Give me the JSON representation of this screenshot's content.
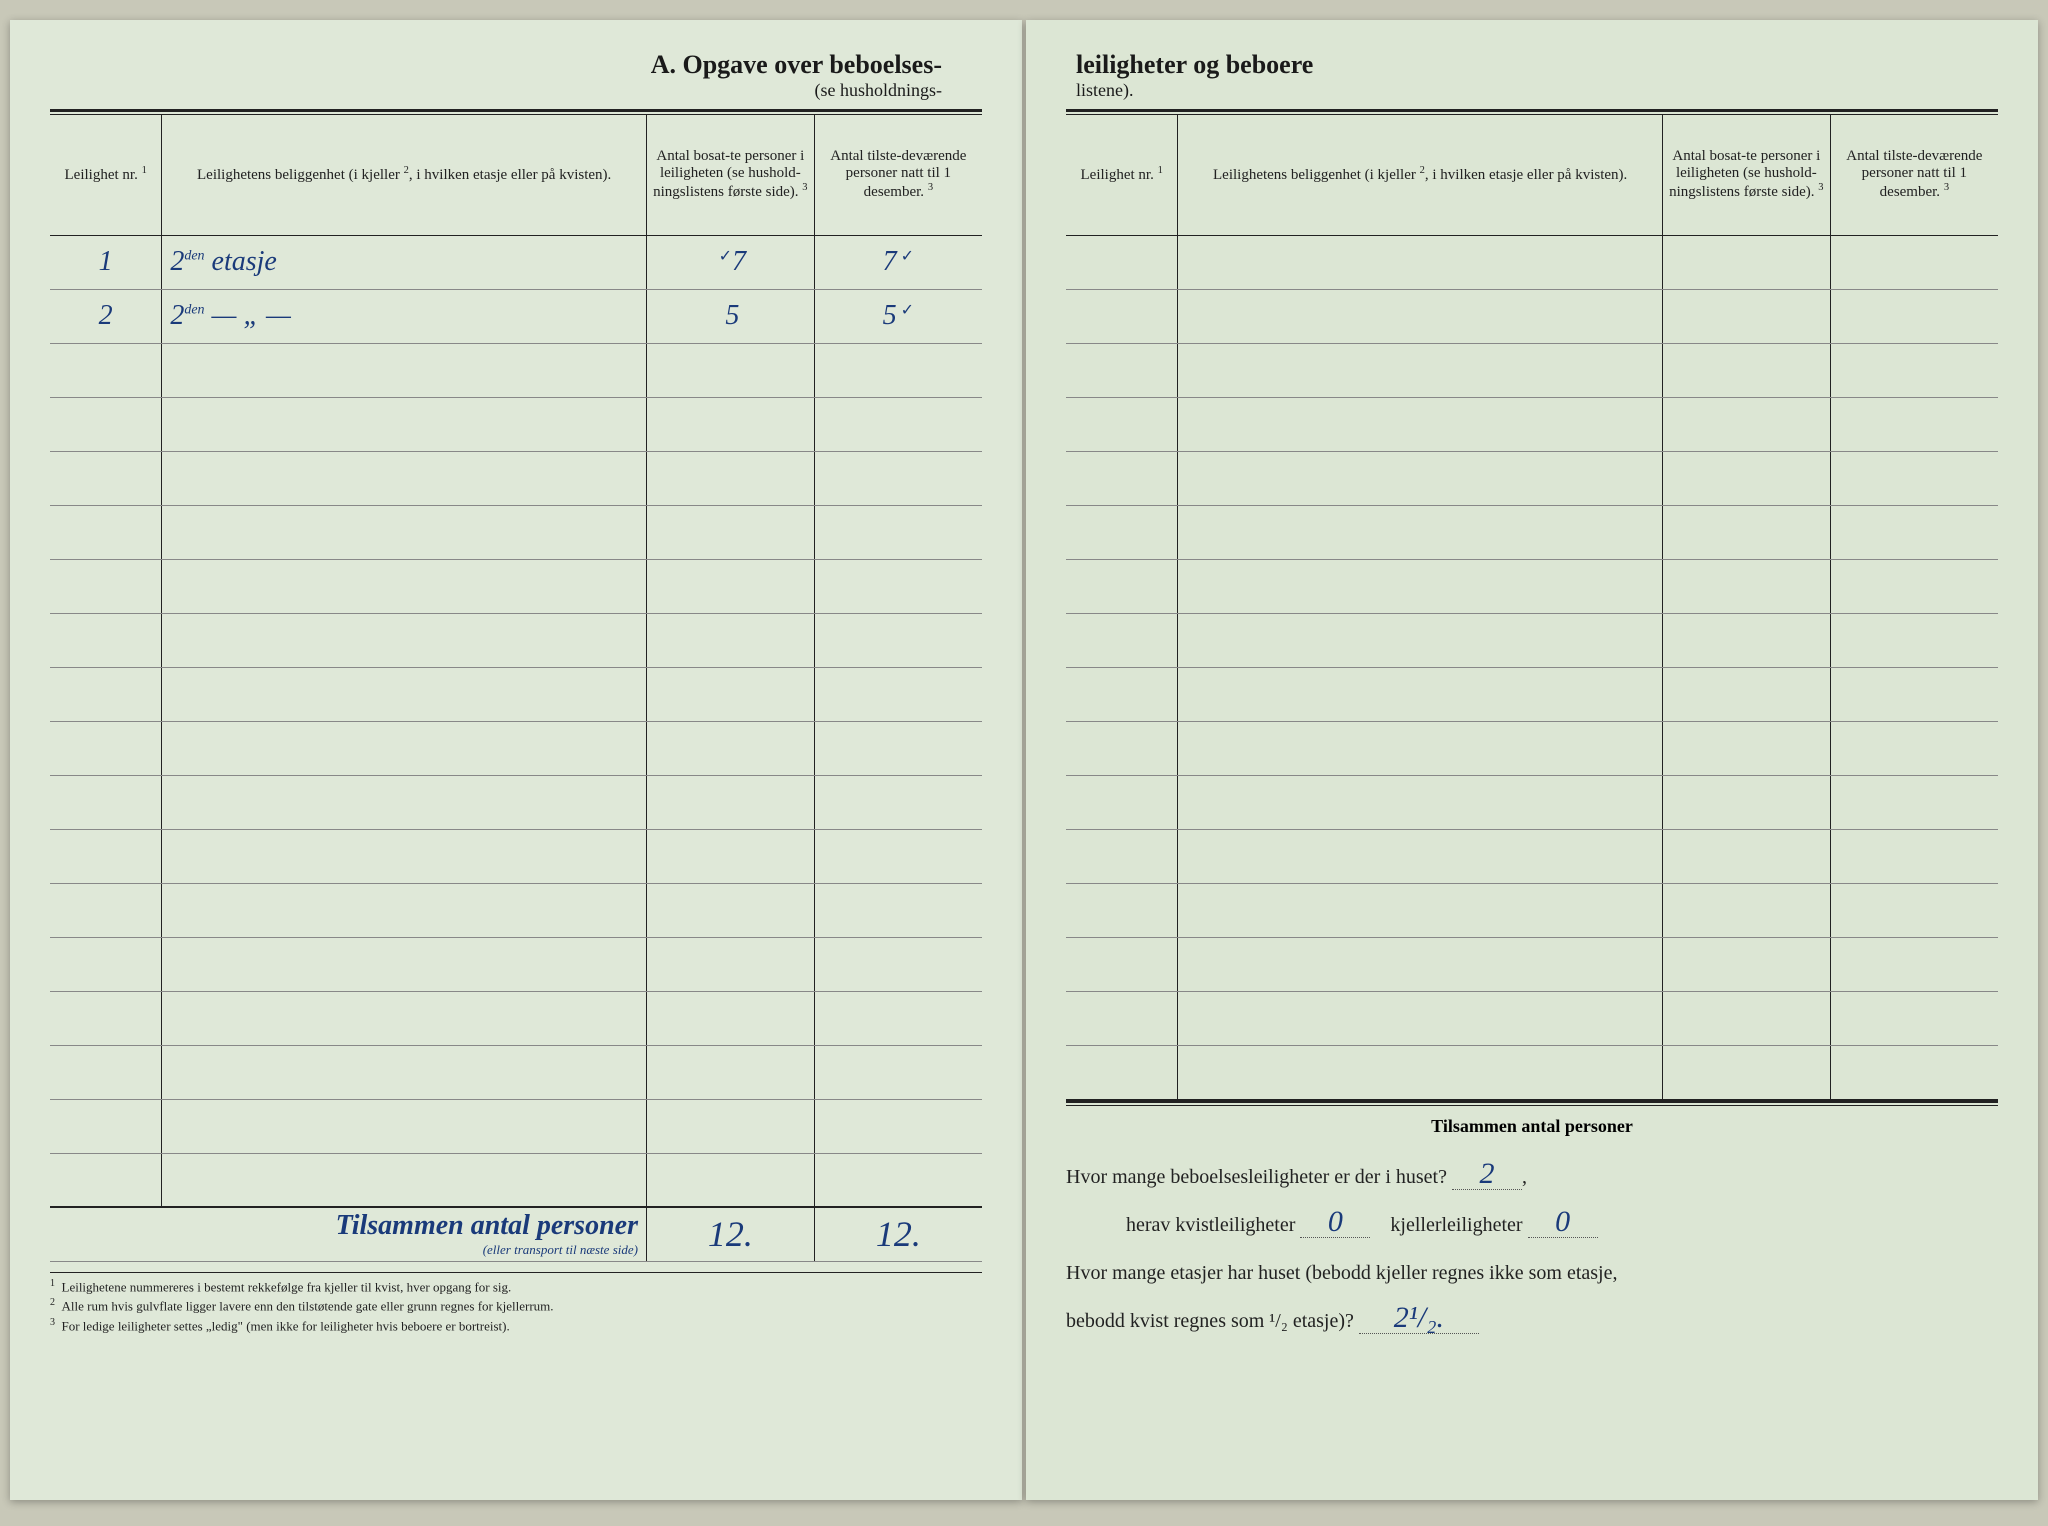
{
  "document": {
    "section_letter": "A.",
    "title_left": "Opgave over beboelses-",
    "title_right": "leiligheter og beboere",
    "subtitle_left": "(se husholdnings-",
    "subtitle_right": "listene).",
    "colors": {
      "paper": "#dfe8d8",
      "paper_right": "#dce6d4",
      "ink_print": "#1a1a1a",
      "ink_handwriting": "#1a3a7a",
      "rule": "#222222"
    }
  },
  "columns": {
    "c1": "Leilighet nr.",
    "c1_sup": "1",
    "c2": "Leilighetens beliggenhet (i kjeller",
    "c2_sup": "2",
    "c2_tail": ", i hvilken etasje eller på kvisten).",
    "c3": "Antal bosat-te personer i leiligheten (se hushold-ningslistens første side).",
    "c3_sup": "3",
    "c4": "Antal tilste-deværende personer natt til 1 desember.",
    "c4_sup": "3"
  },
  "left_rows": [
    {
      "nr": "1",
      "loc": "2",
      "loc_sup": "den",
      "loc_tail": " etasje",
      "bosatte": "7",
      "tick3": "✓",
      "tilstede": "7",
      "tick4": "✓"
    },
    {
      "nr": "2",
      "loc": "2",
      "loc_sup": "den",
      "loc_tail": " — „ —",
      "bosatte": "5",
      "tick3": "",
      "tilstede": "5",
      "tick4": "✓"
    }
  ],
  "left_blank_rows": 16,
  "right_blank_rows": 16,
  "totals": {
    "label": "Tilsammen antal personer",
    "subnote": "(eller transport til næste side)",
    "bosatte": "12.",
    "tilstede": "12.",
    "right_label": "Tilsammen antal personer"
  },
  "footnotes": {
    "f1": "Leilighetene nummereres i bestemt rekkefølge fra kjeller til kvist, hver opgang for sig.",
    "f2": "Alle rum hvis gulvflate ligger lavere enn den tilstøtende gate eller grunn regnes for kjellerrum.",
    "f3": "For ledige leiligheter settes „ledig\" (men ikke for leiligheter hvis beboere er bortreist)."
  },
  "questions": {
    "q1_a": "Hvor mange beboelsesleiligheter er der i huset?",
    "q1_val": "2",
    "q2_a": "herav kvistleiligheter",
    "q2_val1": "0",
    "q2_b": "kjellerleiligheter",
    "q2_val2": "0",
    "q3_a": "Hvor mange etasjer har huset (bebodd kjeller regnes ikke som etasje,",
    "q3_b": "bebodd kvist regnes som ¹/₂ etasje)?",
    "q3_val": "2¹/₂."
  }
}
